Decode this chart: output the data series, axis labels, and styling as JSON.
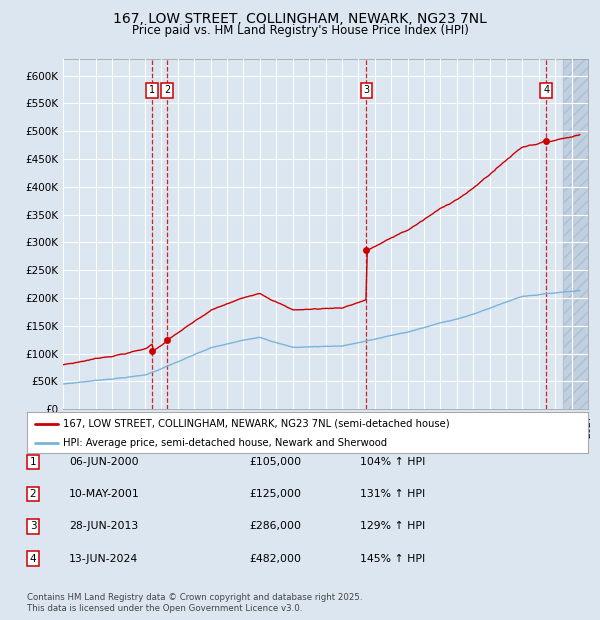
{
  "title": "167, LOW STREET, COLLINGHAM, NEWARK, NG23 7NL",
  "subtitle": "Price paid vs. HM Land Registry's House Price Index (HPI)",
  "title_fontsize": 10,
  "subtitle_fontsize": 8.5,
  "bg_color": "#dce6f1",
  "plot_bg_color": "#dce6f1",
  "future_bg_color": "#c8d8e8",
  "grid_color": "#ffffff",
  "hpi_line_color": "#7ab4d8",
  "price_line_color": "#cc0000",
  "legend_entries": [
    "167, LOW STREET, COLLINGHAM, NEWARK, NG23 7NL (semi-detached house)",
    "HPI: Average price, semi-detached house, Newark and Sherwood"
  ],
  "transactions": [
    {
      "num": 1,
      "date": "06-JUN-2000",
      "price": 105000,
      "pct": "104%",
      "dir": "↑",
      "x_year": 2000.44
    },
    {
      "num": 2,
      "date": "10-MAY-2001",
      "price": 125000,
      "pct": "131%",
      "dir": "↑",
      "x_year": 2001.36
    },
    {
      "num": 3,
      "date": "28-JUN-2013",
      "price": 286000,
      "pct": "129%",
      "dir": "↑",
      "x_year": 2013.49
    },
    {
      "num": 4,
      "date": "13-JUN-2024",
      "price": 482000,
      "pct": "145%",
      "dir": "↑",
      "x_year": 2024.45
    }
  ],
  "footer": "Contains HM Land Registry data © Crown copyright and database right 2025.\nThis data is licensed under the Open Government Licence v3.0.",
  "ylim": [
    0,
    630000
  ],
  "xlim_start": 1995.0,
  "xlim_end": 2027.0,
  "future_start": 2025.45,
  "ytick_values": [
    0,
    50000,
    100000,
    150000,
    200000,
    250000,
    300000,
    350000,
    400000,
    450000,
    500000,
    550000,
    600000
  ],
  "ytick_labels": [
    "£0",
    "£50K",
    "£100K",
    "£150K",
    "£200K",
    "£250K",
    "£300K",
    "£350K",
    "£400K",
    "£450K",
    "£500K",
    "£550K",
    "£600K"
  ]
}
